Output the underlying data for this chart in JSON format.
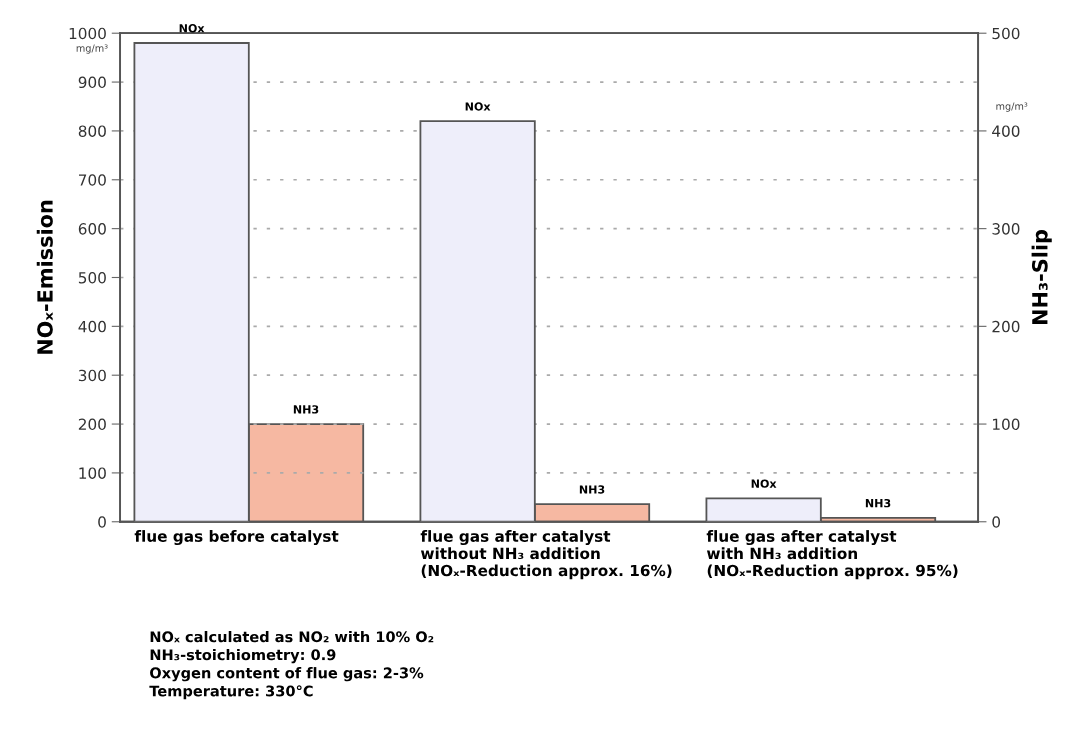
{
  "chart_data": {
    "type": "bar",
    "categories": [
      "flue gas before catalyst",
      "flue gas after catalyst\nwithout NH₃ addition\n(NOₓ-Reduction approx. 16%)",
      "flue gas after catalyst\nwith NH₃ addition\n(NOₓ-Reduction approx. 95%)"
    ],
    "series": [
      {
        "name": "NOx",
        "color": "#eeeefa",
        "values": [
          980,
          820,
          48
        ]
      },
      {
        "name": "NH3",
        "color": "#f6b8a2",
        "values": [
          100,
          18,
          4
        ],
        "axis": "y2"
      }
    ],
    "ylabel": "NOₓ-Emission",
    "y2label": "NH₃-Slip",
    "ylim": [
      0,
      1000
    ],
    "yticks": [
      0,
      100,
      200,
      300,
      400,
      500,
      600,
      700,
      800,
      900,
      1000
    ],
    "y2lim": [
      0,
      500
    ],
    "y2ticks": [
      0,
      100,
      200,
      300,
      400,
      500
    ],
    "grid": "y",
    "legend": false,
    "annotations": [
      "mg/m³",
      "mg/m³",
      "NOₓ calculated as NO₂ with 10% O₂\nNH₃-stoichiometry: 0.9\nOxygen content of flue gas: 2-3%\nTemperature: 330°C"
    ]
  }
}
